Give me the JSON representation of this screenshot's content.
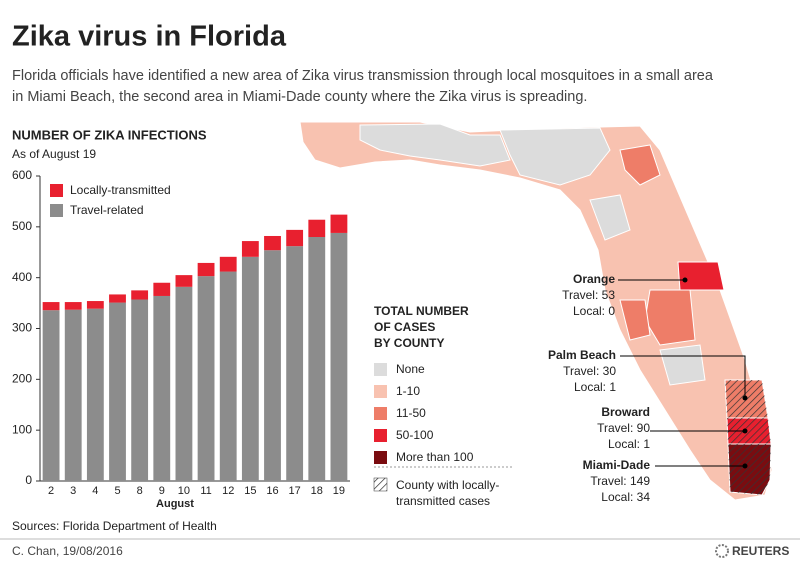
{
  "header": {
    "title": "Zika virus in Florida",
    "subtitle": [
      "Florida officials have identified a new area of Zika virus transmission through local mosquitoes in a small area",
      "in Miami Beach, the second area in Miami-Dade county where the Zika virus is spreading."
    ]
  },
  "chart_data": {
    "type": "stacked_bar",
    "title": "NUMBER OF ZIKA INFECTIONS",
    "subtitle": "As of August 19",
    "x_label": "August",
    "categories": [
      "2",
      "3",
      "4",
      "5",
      "8",
      "9",
      "10",
      "11",
      "12",
      "15",
      "16",
      "17",
      "18",
      "19"
    ],
    "series": [
      {
        "name": "Travel-related",
        "color": "#8c8c8c",
        "values": [
          336,
          337,
          339,
          351,
          357,
          364,
          382,
          403,
          412,
          441,
          454,
          462,
          480,
          488
        ]
      },
      {
        "name": "Locally-transmitted",
        "color": "#e8202f",
        "values": [
          16,
          15,
          15,
          16,
          18,
          26,
          23,
          26,
          29,
          31,
          28,
          32,
          34,
          36
        ]
      }
    ],
    "ylim": [
      0,
      600
    ],
    "yticks": [
      0,
      100,
      200,
      300,
      400,
      500,
      600
    ],
    "grid": false,
    "legend": "top-left"
  },
  "map": {
    "legend_title": [
      "TOTAL NUMBER",
      "OF CASES",
      "BY COUNTY"
    ],
    "legend_items": [
      {
        "label": "None",
        "color": "#dcdcdc"
      },
      {
        "label": "1-10",
        "color": "#f8c2b0"
      },
      {
        "label": "11-50",
        "color": "#ee7d68"
      },
      {
        "label": "50-100",
        "color": "#e8202f"
      },
      {
        "label": "More than 100",
        "color": "#7a0c10"
      }
    ],
    "hatch_note": [
      "County with locally-",
      "transmitted cases"
    ],
    "callouts": [
      {
        "name": "Orange",
        "lines": [
          "Travel: 53",
          "Local: 0"
        ]
      },
      {
        "name": "Palm Beach",
        "lines": [
          "Travel: 30",
          "Local: 1"
        ]
      },
      {
        "name": "Broward",
        "lines": [
          "Travel: 90",
          "Local: 1"
        ]
      },
      {
        "name": "Miami-Dade",
        "lines": [
          "Travel: 149",
          "Local: 34"
        ]
      }
    ]
  },
  "footer": {
    "source": "Sources: Florida Department of Health",
    "credit": "C. Chan,  19/08/2016",
    "logo": "REUTERS"
  }
}
